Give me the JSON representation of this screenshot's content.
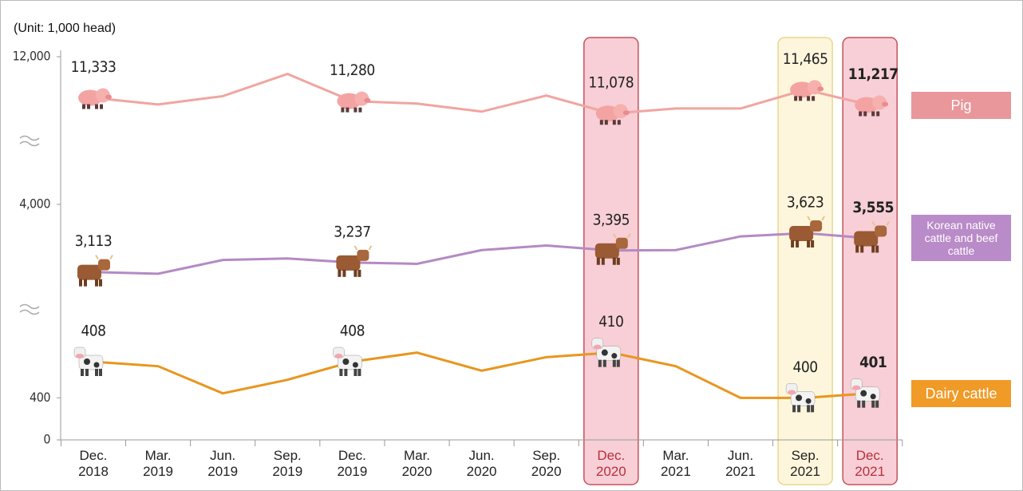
{
  "chart_data": {
    "type": "line",
    "unit_label": "(Unit: 1,000 head)",
    "categories": [
      "Dec.\n2018",
      "Mar.\n2019",
      "Jun.\n2019",
      "Sep.\n2019",
      "Dec.\n2019",
      "Mar.\n2020",
      "Jun.\n2020",
      "Sep.\n2020",
      "Dec.\n2020",
      "Mar.\n2021",
      "Jun.\n2021",
      "Sep.\n2021",
      "Dec.\n2021"
    ],
    "ylim": [
      0,
      12000
    ],
    "yticks": [
      0,
      400,
      {
        "value": 4000,
        "label": "4,000"
      },
      {
        "value": 12000,
        "label": "12,000"
      }
    ],
    "ybreaks": [
      [
        60,
        396
      ],
      [
        414,
        2900
      ],
      [
        4000,
        10900
      ]
    ],
    "highlights": [
      null,
      null,
      null,
      null,
      null,
      null,
      null,
      null,
      {
        "fill": "#f8cfd6",
        "stroke": "#c4525f",
        "text_color": "#b8303d"
      },
      null,
      null,
      {
        "fill": "#fdf6dc",
        "stroke": "#e9d78e",
        "text_color": "#222222"
      },
      {
        "fill": "#f8cfd6",
        "stroke": "#c4525f",
        "text_color": "#b8303d"
      }
    ],
    "series": [
      {
        "name": "Pig",
        "color": "#f0a5a1",
        "legend_color": "#e9979a",
        "icon": "pig",
        "values": [
          11333,
          11226,
          11360,
          11720,
          11280,
          11240,
          11110,
          11370,
          11078,
          11160,
          11160,
          11465,
          11217
        ],
        "value_labels": [
          "11,333",
          null,
          null,
          null,
          "11,280",
          null,
          null,
          null,
          "11,078",
          null,
          null,
          "11,465",
          "11,217"
        ]
      },
      {
        "name": "Korean native cattle and beef cattle",
        "color": "#b48ac4",
        "legend_color": "#b98bc8",
        "icon": "cow",
        "values": [
          3113,
          3090,
          3270,
          3290,
          3237,
          3220,
          3400,
          3460,
          3395,
          3400,
          3580,
          3623,
          3555
        ],
        "value_labels": [
          "3,113",
          null,
          null,
          null,
          "3,237",
          null,
          null,
          null,
          "3,395",
          null,
          null,
          "3,623",
          "3,555"
        ]
      },
      {
        "name": "Dairy cattle",
        "color": "#e8961e",
        "legend_color": "#f09a27",
        "icon": "dairy",
        "values": [
          408,
          407,
          401,
          404,
          408,
          410,
          406,
          409,
          410,
          407,
          400,
          400,
          401
        ],
        "value_labels": [
          "408",
          null,
          null,
          null,
          "408",
          null,
          null,
          null,
          "410",
          null,
          null,
          "400",
          "401"
        ]
      }
    ]
  }
}
